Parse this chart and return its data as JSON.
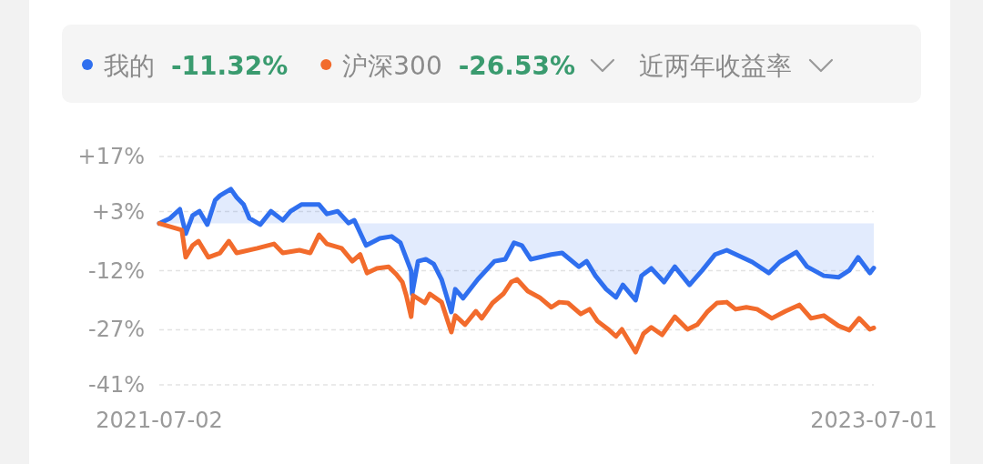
{
  "chart_data": {
    "type": "line",
    "legend": "top",
    "grid": "y",
    "marker": "none",
    "line_style": "solid",
    "xlim": [
      "2021-07-02",
      "2023-07-01"
    ],
    "xticks": [
      {
        "value": "2021-07-02",
        "label": "2021-07-02"
      },
      {
        "value": "2023-07-01",
        "label": "2023-07-01"
      }
    ],
    "ylim": [
      -41,
      17
    ],
    "yticks": [
      {
        "value": 17,
        "label": "+17%"
      },
      {
        "value": 3,
        "label": "+3%"
      },
      {
        "value": -12,
        "label": "-12%"
      },
      {
        "value": -27,
        "label": "-27%"
      },
      {
        "value": -41,
        "label": "-41%"
      }
    ],
    "annotations": [
      "-11.32%",
      "-26.53%",
      "近两年收益率"
    ],
    "series": [
      {
        "name": "我的",
        "type": "area",
        "color": "#2f6fef",
        "x": [
          "2021-07-02",
          "2021-07-13",
          "2021-07-23",
          "2021-07-29",
          "2021-08-05",
          "2021-08-12",
          "2021-08-20",
          "2021-08-28",
          "2021-09-02",
          "2021-09-13",
          "2021-09-19",
          "2021-09-26",
          "2021-10-02",
          "2021-10-13",
          "2021-10-24",
          "2021-11-05",
          "2021-11-13",
          "2021-11-24",
          "2021-12-12",
          "2021-12-20",
          "2021-12-31",
          "2022-01-11",
          "2022-01-17",
          "2022-01-29",
          "2022-02-12",
          "2022-02-24",
          "2022-03-05",
          "2022-03-16",
          "2022-03-17",
          "2022-03-23",
          "2022-03-31",
          "2022-04-08",
          "2022-04-16",
          "2022-04-26",
          "2022-04-30",
          "2022-05-08",
          "2022-05-23",
          "2022-06-09",
          "2022-06-20",
          "2022-06-29",
          "2022-07-07",
          "2022-07-16",
          "2022-08-06",
          "2022-08-17",
          "2022-09-03",
          "2022-09-11",
          "2022-09-20",
          "2022-10-01",
          "2022-10-11",
          "2022-10-18",
          "2022-10-31",
          "2022-11-06",
          "2022-11-16",
          "2022-11-29",
          "2022-12-10",
          "2022-12-25",
          "2023-01-07",
          "2023-01-20",
          "2023-02-01",
          "2023-02-15",
          "2023-02-27",
          "2023-03-16",
          "2023-03-27",
          "2023-04-13",
          "2023-04-24",
          "2023-05-11",
          "2023-05-26",
          "2023-06-06",
          "2023-06-15",
          "2023-06-27",
          "2023-07-01"
        ],
        "values": [
          0,
          1.3,
          3.6,
          -2.6,
          2.0,
          3.1,
          -0.3,
          5.9,
          7.1,
          8.7,
          6.6,
          4.8,
          1.3,
          -0.3,
          3.1,
          0.8,
          3.1,
          4.8,
          4.8,
          2.4,
          3.1,
          0.1,
          0.8,
          -5.6,
          -3.8,
          -3.3,
          -4.9,
          -12.1,
          -17.9,
          -9.6,
          -9.1,
          -10.3,
          -14.2,
          -22.5,
          -16.7,
          -19.0,
          -14.2,
          -9.6,
          -9.1,
          -4.9,
          -5.6,
          -9.1,
          -7.9,
          -7.5,
          -11.0,
          -9.6,
          -13.3,
          -16.7,
          -18.8,
          -15.6,
          -19.5,
          -13.3,
          -11.4,
          -14.9,
          -11.0,
          -15.6,
          -11.9,
          -7.9,
          -6.8,
          -8.4,
          -9.8,
          -12.6,
          -9.8,
          -7.3,
          -11.0,
          -13.3,
          -13.7,
          -11.9,
          -8.6,
          -12.6,
          -11.32
        ]
      },
      {
        "name": "沪深300",
        "color": "#f26b2c",
        "x": [
          "2021-07-02",
          "2021-07-25",
          "2021-07-29",
          "2021-08-05",
          "2021-08-11",
          "2021-08-21",
          "2021-09-02",
          "2021-09-11",
          "2021-09-19",
          "2021-10-10",
          "2021-10-27",
          "2021-11-05",
          "2021-11-22",
          "2021-12-03",
          "2021-12-12",
          "2021-12-20",
          "2022-01-04",
          "2022-01-15",
          "2022-01-23",
          "2022-01-30",
          "2022-02-09",
          "2022-02-21",
          "2022-03-01",
          "2022-03-07",
          "2022-03-11",
          "2022-03-16",
          "2022-03-18",
          "2022-03-30",
          "2022-04-04",
          "2022-04-16",
          "2022-04-26",
          "2022-04-30",
          "2022-05-10",
          "2022-05-21",
          "2022-05-27",
          "2022-06-07",
          "2022-06-18",
          "2022-06-26",
          "2022-07-02",
          "2022-07-13",
          "2022-07-25",
          "2022-08-06",
          "2022-08-14",
          "2022-08-23",
          "2022-09-05",
          "2022-09-14",
          "2022-09-22",
          "2022-10-04",
          "2022-10-11",
          "2022-10-17",
          "2022-10-31",
          "2022-11-08",
          "2022-11-16",
          "2022-11-27",
          "2022-12-10",
          "2022-12-23",
          "2023-01-02",
          "2023-01-12",
          "2023-01-22",
          "2023-02-01",
          "2023-02-10",
          "2023-02-21",
          "2023-03-04",
          "2023-03-19",
          "2023-04-02",
          "2023-04-16",
          "2023-04-28",
          "2023-05-11",
          "2023-05-26",
          "2023-06-06",
          "2023-06-16",
          "2023-06-27",
          "2023-07-01"
        ],
        "values": [
          0,
          -1.7,
          -8.6,
          -5.6,
          -4.5,
          -8.6,
          -7.5,
          -4.5,
          -7.5,
          -6.3,
          -5.2,
          -7.5,
          -6.8,
          -7.5,
          -2.9,
          -5.2,
          -6.3,
          -9.6,
          -7.9,
          -12.6,
          -11.4,
          -11.0,
          -13.0,
          -14.9,
          -18.3,
          -23.7,
          -18.3,
          -20.2,
          -17.9,
          -20.0,
          -27.6,
          -23.4,
          -25.7,
          -22.3,
          -24.1,
          -20.2,
          -17.9,
          -14.9,
          -14.2,
          -17.2,
          -18.8,
          -21.3,
          -20.0,
          -20.2,
          -23.0,
          -21.8,
          -24.8,
          -27.1,
          -28.7,
          -26.9,
          -32.7,
          -28.0,
          -26.4,
          -28.3,
          -23.7,
          -26.9,
          -25.7,
          -22.5,
          -20.2,
          -20.0,
          -21.8,
          -21.3,
          -21.8,
          -24.1,
          -22.3,
          -20.7,
          -24.1,
          -23.4,
          -26.0,
          -27.1,
          -24.1,
          -26.9,
          -26.53
        ]
      }
    ]
  }
}
